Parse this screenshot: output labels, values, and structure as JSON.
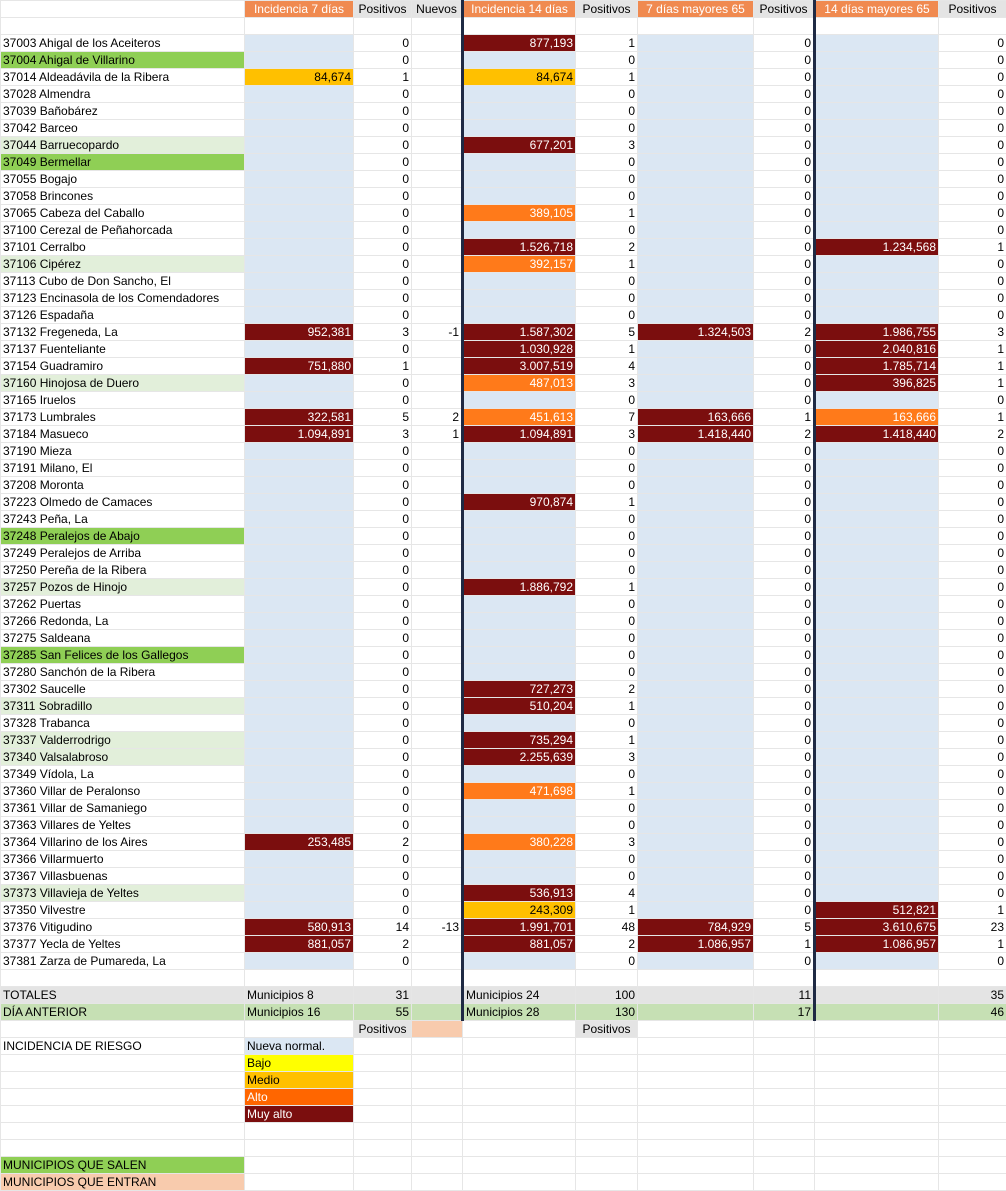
{
  "header": {
    "blank": "",
    "inc7": "Incidencia 7 días",
    "pos1": "Positivos",
    "nuevos": "Nuevos",
    "inc14": "Incidencia 14 días",
    "pos2": "Positivos",
    "may7": "7 días mayores 65",
    "pos3": "Positivos",
    "may14": "14 días mayores 65",
    "pos4": "Positivos"
  },
  "rows": [
    {
      "name": "37003 Ahigal de los Aceiteros",
      "hl": "",
      "i7": "",
      "p7": "0",
      "nu": "",
      "i14": "877,193",
      "i14c": "maroon",
      "p14": "1",
      "m7": "",
      "p65a": "0",
      "m14": "",
      "p65b": "0"
    },
    {
      "name": "37004 Ahigal de Villarino",
      "hl": "outgreen",
      "i7": "",
      "p7": "0",
      "nu": "",
      "i14": "",
      "i14c": "",
      "p14": "0",
      "m7": "",
      "p65a": "0",
      "m14": "",
      "p65b": "0"
    },
    {
      "name": "37014 Aldeadávila de la Ribera",
      "hl": "",
      "i7": "84,674",
      "i7c": "yellow",
      "p7": "1",
      "nu": "",
      "i14": "84,674",
      "i14c": "yellow",
      "p14": "1",
      "m7": "",
      "p65a": "0",
      "m14": "",
      "p65b": "0"
    },
    {
      "name": "37028 Almendra",
      "hl": "",
      "i7": "",
      "p7": "0",
      "nu": "",
      "i14": "",
      "i14c": "",
      "p14": "0",
      "m7": "",
      "p65a": "0",
      "m14": "",
      "p65b": "0"
    },
    {
      "name": "37039 Bañobárez",
      "hl": "",
      "i7": "",
      "p7": "0",
      "nu": "",
      "i14": "",
      "i14c": "",
      "p14": "0",
      "m7": "",
      "p65a": "0",
      "m14": "",
      "p65b": "0"
    },
    {
      "name": "37042 Barceo",
      "hl": "",
      "i7": "",
      "p7": "0",
      "nu": "",
      "i14": "",
      "i14c": "",
      "p14": "0",
      "m7": "",
      "p65a": "0",
      "m14": "",
      "p65b": "0"
    },
    {
      "name": "37044 Barruecopardo",
      "hl": "palegreen",
      "i7": "",
      "p7": "0",
      "nu": "",
      "i14": "677,201",
      "i14c": "maroon",
      "p14": "3",
      "m7": "",
      "p65a": "0",
      "m14": "",
      "p65b": "0"
    },
    {
      "name": "37049 Bermellar",
      "hl": "outgreen",
      "i7": "",
      "p7": "0",
      "nu": "",
      "i14": "",
      "i14c": "",
      "p14": "0",
      "m7": "",
      "p65a": "0",
      "m14": "",
      "p65b": "0"
    },
    {
      "name": "37055 Bogajo",
      "hl": "",
      "i7": "",
      "p7": "0",
      "nu": "",
      "i14": "",
      "i14c": "",
      "p14": "0",
      "m7": "",
      "p65a": "0",
      "m14": "",
      "p65b": "0"
    },
    {
      "name": "37058 Brincones",
      "hl": "",
      "i7": "",
      "p7": "0",
      "nu": "",
      "i14": "",
      "i14c": "",
      "p14": "0",
      "m7": "",
      "p65a": "0",
      "m14": "",
      "p65b": "0"
    },
    {
      "name": "37065 Cabeza del Caballo",
      "hl": "",
      "i7": "",
      "p7": "0",
      "nu": "",
      "i14": "389,105",
      "i14c": "orange",
      "p14": "1",
      "m7": "",
      "p65a": "0",
      "m14": "",
      "p65b": "0"
    },
    {
      "name": "37100 Cerezal de Peñahorcada",
      "hl": "",
      "i7": "",
      "p7": "0",
      "nu": "",
      "i14": "",
      "i14c": "",
      "p14": "0",
      "m7": "",
      "p65a": "0",
      "m14": "",
      "p65b": "0"
    },
    {
      "name": "37101 Cerralbo",
      "hl": "",
      "i7": "",
      "p7": "0",
      "nu": "",
      "i14": "1.526,718",
      "i14c": "maroon",
      "p14": "2",
      "m7": "",
      "p65a": "0",
      "m14": "1.234,568",
      "m14c": "maroon",
      "p65b": "1"
    },
    {
      "name": "37106 Cipérez",
      "hl": "palegreen",
      "i7": "",
      "p7": "0",
      "nu": "",
      "i14": "392,157",
      "i14c": "orange",
      "p14": "1",
      "m7": "",
      "p65a": "0",
      "m14": "",
      "p65b": "0"
    },
    {
      "name": "37113 Cubo de Don Sancho, El",
      "hl": "",
      "i7": "",
      "p7": "0",
      "nu": "",
      "i14": "",
      "i14c": "",
      "p14": "0",
      "m7": "",
      "p65a": "0",
      "m14": "",
      "p65b": "0"
    },
    {
      "name": "37123 Encinasola de los Comendadores",
      "hl": "",
      "i7": "",
      "p7": "0",
      "nu": "",
      "i14": "",
      "i14c": "",
      "p14": "0",
      "m7": "",
      "p65a": "0",
      "m14": "",
      "p65b": "0"
    },
    {
      "name": "37126 Espadaña",
      "hl": "",
      "i7": "",
      "p7": "0",
      "nu": "",
      "i14": "",
      "i14c": "",
      "p14": "0",
      "m7": "",
      "p65a": "0",
      "m14": "",
      "p65b": "0"
    },
    {
      "name": "37132 Fregeneda, La",
      "hl": "",
      "i7": "952,381",
      "i7c": "maroon",
      "p7": "3",
      "nu": "-1",
      "i14": "1.587,302",
      "i14c": "maroon",
      "p14": "5",
      "m7": "1.324,503",
      "m7c": "maroon",
      "p65a": "2",
      "m14": "1.986,755",
      "m14c": "maroon",
      "p65b": "3"
    },
    {
      "name": "37137 Fuenteliante",
      "hl": "",
      "i7": "",
      "p7": "0",
      "nu": "",
      "i14": "1.030,928",
      "i14c": "maroon",
      "p14": "1",
      "m7": "",
      "p65a": "0",
      "m14": "2.040,816",
      "m14c": "maroon",
      "p65b": "1"
    },
    {
      "name": "37154 Guadramiro",
      "hl": "",
      "i7": "751,880",
      "i7c": "maroon",
      "p7": "1",
      "nu": "",
      "i14": "3.007,519",
      "i14c": "maroon",
      "p14": "4",
      "m7": "",
      "p65a": "0",
      "m14": "1.785,714",
      "m14c": "maroon",
      "p65b": "1"
    },
    {
      "name": "37160 Hinojosa de Duero",
      "hl": "palegreen",
      "i7": "",
      "p7": "0",
      "nu": "",
      "i14": "487,013",
      "i14c": "orange",
      "p14": "3",
      "m7": "",
      "p65a": "0",
      "m14": "396,825",
      "m14c": "maroon",
      "p65b": "1"
    },
    {
      "name": "37165 Iruelos",
      "hl": "",
      "i7": "",
      "p7": "0",
      "nu": "",
      "i14": "",
      "i14c": "",
      "p14": "0",
      "m7": "",
      "p65a": "0",
      "m14": "",
      "p65b": "0"
    },
    {
      "name": "37173 Lumbrales",
      "hl": "",
      "i7": "322,581",
      "i7c": "maroon",
      "p7": "5",
      "nu": "2",
      "i14": "451,613",
      "i14c": "orange",
      "p14": "7",
      "m7": "163,666",
      "m7c": "maroon",
      "p65a": "1",
      "m14": "163,666",
      "m14c": "orange",
      "p65b": "1"
    },
    {
      "name": "37184 Masueco",
      "hl": "",
      "i7": "1.094,891",
      "i7c": "maroon",
      "p7": "3",
      "nu": "1",
      "i14": "1.094,891",
      "i14c": "maroon",
      "p14": "3",
      "m7": "1.418,440",
      "m7c": "maroon",
      "p65a": "2",
      "m14": "1.418,440",
      "m14c": "maroon",
      "p65b": "2"
    },
    {
      "name": "37190 Mieza",
      "hl": "",
      "i7": "",
      "p7": "0",
      "nu": "",
      "i14": "",
      "i14c": "",
      "p14": "0",
      "m7": "",
      "p65a": "0",
      "m14": "",
      "p65b": "0"
    },
    {
      "name": "37191 Milano, El",
      "hl": "",
      "i7": "",
      "p7": "0",
      "nu": "",
      "i14": "",
      "i14c": "",
      "p14": "0",
      "m7": "",
      "p65a": "0",
      "m14": "",
      "p65b": "0"
    },
    {
      "name": "37208 Moronta",
      "hl": "",
      "i7": "",
      "p7": "0",
      "nu": "",
      "i14": "",
      "i14c": "",
      "p14": "0",
      "m7": "",
      "p65a": "0",
      "m14": "",
      "p65b": "0"
    },
    {
      "name": "37223 Olmedo de Camaces",
      "hl": "",
      "i7": "",
      "p7": "0",
      "nu": "",
      "i14": "970,874",
      "i14c": "maroon",
      "p14": "1",
      "m7": "",
      "p65a": "0",
      "m14": "",
      "p65b": "0"
    },
    {
      "name": "37243 Peña, La",
      "hl": "",
      "i7": "",
      "p7": "0",
      "nu": "",
      "i14": "",
      "i14c": "",
      "p14": "0",
      "m7": "",
      "p65a": "0",
      "m14": "",
      "p65b": "0"
    },
    {
      "name": "37248 Peralejos de Abajo",
      "hl": "outgreen",
      "i7": "",
      "p7": "0",
      "nu": "",
      "i14": "",
      "i14c": "",
      "p14": "0",
      "m7": "",
      "p65a": "0",
      "m14": "",
      "p65b": "0"
    },
    {
      "name": "37249 Peralejos de Arriba",
      "hl": "",
      "i7": "",
      "p7": "0",
      "nu": "",
      "i14": "",
      "i14c": "",
      "p14": "0",
      "m7": "",
      "p65a": "0",
      "m14": "",
      "p65b": "0"
    },
    {
      "name": "37250 Pereña de la Ribera",
      "hl": "",
      "i7": "",
      "p7": "0",
      "nu": "",
      "i14": "",
      "i14c": "",
      "p14": "0",
      "m7": "",
      "p65a": "0",
      "m14": "",
      "p65b": "0"
    },
    {
      "name": "37257 Pozos de Hinojo",
      "hl": "palegreen",
      "i7": "",
      "p7": "0",
      "nu": "",
      "i14": "1.886,792",
      "i14c": "maroon",
      "p14": "1",
      "m7": "",
      "p65a": "0",
      "m14": "",
      "p65b": "0"
    },
    {
      "name": "37262 Puertas",
      "hl": "",
      "i7": "",
      "p7": "0",
      "nu": "",
      "i14": "",
      "i14c": "",
      "p14": "0",
      "m7": "",
      "p65a": "0",
      "m14": "",
      "p65b": "0"
    },
    {
      "name": "37266 Redonda, La",
      "hl": "",
      "i7": "",
      "p7": "0",
      "nu": "",
      "i14": "",
      "i14c": "",
      "p14": "0",
      "m7": "",
      "p65a": "0",
      "m14": "",
      "p65b": "0"
    },
    {
      "name": "37275 Saldeana",
      "hl": "",
      "i7": "",
      "p7": "0",
      "nu": "",
      "i14": "",
      "i14c": "",
      "p14": "0",
      "m7": "",
      "p65a": "0",
      "m14": "",
      "p65b": "0"
    },
    {
      "name": "37285 San Felices de los Gallegos",
      "hl": "outgreen",
      "i7": "",
      "p7": "0",
      "nu": "",
      "i14": "",
      "i14c": "",
      "p14": "0",
      "m7": "",
      "p65a": "0",
      "m14": "",
      "p65b": "0"
    },
    {
      "name": "37280 Sanchón de la Ribera",
      "hl": "",
      "i7": "",
      "p7": "0",
      "nu": "",
      "i14": "",
      "i14c": "",
      "p14": "0",
      "m7": "",
      "p65a": "0",
      "m14": "",
      "p65b": "0"
    },
    {
      "name": "37302 Saucelle",
      "hl": "",
      "i7": "",
      "p7": "0",
      "nu": "",
      "i14": "727,273",
      "i14c": "maroon",
      "p14": "2",
      "m7": "",
      "p65a": "0",
      "m14": "",
      "p65b": "0"
    },
    {
      "name": "37311 Sobradillo",
      "hl": "palegreen",
      "i7": "",
      "p7": "0",
      "nu": "",
      "i14": "510,204",
      "i14c": "maroon",
      "p14": "1",
      "m7": "",
      "p65a": "0",
      "m14": "",
      "p65b": "0"
    },
    {
      "name": "37328 Trabanca",
      "hl": "",
      "i7": "",
      "p7": "0",
      "nu": "",
      "i14": "",
      "i14c": "",
      "p14": "0",
      "m7": "",
      "p65a": "0",
      "m14": "",
      "p65b": "0"
    },
    {
      "name": "37337 Valderrodrigo",
      "hl": "palegreen",
      "i7": "",
      "p7": "0",
      "nu": "",
      "i14": "735,294",
      "i14c": "maroon",
      "p14": "1",
      "m7": "",
      "p65a": "0",
      "m14": "",
      "p65b": "0"
    },
    {
      "name": "37340 Valsalabroso",
      "hl": "palegreen",
      "i7": "",
      "p7": "0",
      "nu": "",
      "i14": "2.255,639",
      "i14c": "maroon",
      "p14": "3",
      "m7": "",
      "p65a": "0",
      "m14": "",
      "p65b": "0"
    },
    {
      "name": "37349 Vídola, La",
      "hl": "",
      "i7": "",
      "p7": "0",
      "nu": "",
      "i14": "",
      "i14c": "",
      "p14": "0",
      "m7": "",
      "p65a": "0",
      "m14": "",
      "p65b": "0"
    },
    {
      "name": "37360 Villar de Peralonso",
      "hl": "",
      "i7": "",
      "p7": "0",
      "nu": "",
      "i14": "471,698",
      "i14c": "orange",
      "p14": "1",
      "m7": "",
      "p65a": "0",
      "m14": "",
      "p65b": "0"
    },
    {
      "name": "37361 Villar de Samaniego",
      "hl": "",
      "i7": "",
      "p7": "0",
      "nu": "",
      "i14": "",
      "i14c": "",
      "p14": "0",
      "m7": "",
      "p65a": "0",
      "m14": "",
      "p65b": "0"
    },
    {
      "name": "37363 Villares de Yeltes",
      "hl": "",
      "i7": "",
      "p7": "0",
      "nu": "",
      "i14": "",
      "i14c": "",
      "p14": "0",
      "m7": "",
      "p65a": "0",
      "m14": "",
      "p65b": "0"
    },
    {
      "name": "37364 Villarino de los Aires",
      "hl": "",
      "i7": "253,485",
      "i7c": "maroon",
      "p7": "2",
      "nu": "",
      "i14": "380,228",
      "i14c": "orange",
      "p14": "3",
      "m7": "",
      "p65a": "0",
      "m14": "",
      "p65b": "0"
    },
    {
      "name": "37366 Villarmuerto",
      "hl": "",
      "i7": "",
      "p7": "0",
      "nu": "",
      "i14": "",
      "i14c": "",
      "p14": "0",
      "m7": "",
      "p65a": "0",
      "m14": "",
      "p65b": "0"
    },
    {
      "name": "37367 Villasbuenas",
      "hl": "",
      "i7": "",
      "p7": "0",
      "nu": "",
      "i14": "",
      "i14c": "",
      "p14": "0",
      "m7": "",
      "p65a": "0",
      "m14": "",
      "p65b": "0"
    },
    {
      "name": "37373 Villavieja de Yeltes",
      "hl": "palegreen",
      "i7": "",
      "p7": "0",
      "nu": "",
      "i14": "536,913",
      "i14c": "maroon",
      "p14": "4",
      "m7": "",
      "p65a": "0",
      "m14": "",
      "p65b": "0"
    },
    {
      "name": "37350 Vilvestre",
      "hl": "",
      "i7": "",
      "p7": "0",
      "nu": "",
      "i14": "243,309",
      "i14c": "yellow",
      "p14": "1",
      "m7": "",
      "p65a": "0",
      "m14": "512,821",
      "m14c": "maroon",
      "p65b": "1"
    },
    {
      "name": "37376 Vitigudino",
      "hl": "",
      "i7": "580,913",
      "i7c": "maroon",
      "p7": "14",
      "nu": "-13",
      "i14": "1.991,701",
      "i14c": "maroon",
      "p14": "48",
      "m7": "784,929",
      "m7c": "maroon",
      "p65a": "5",
      "m14": "3.610,675",
      "m14c": "maroon",
      "p65b": "23"
    },
    {
      "name": "37377 Yecla de Yeltes",
      "hl": "",
      "i7": "881,057",
      "i7c": "maroon",
      "p7": "2",
      "nu": "",
      "i14": "881,057",
      "i14c": "maroon",
      "p14": "2",
      "m7": "1.086,957",
      "m7c": "maroon",
      "p65a": "1",
      "m14": "1.086,957",
      "m14c": "maroon",
      "p65b": "1"
    },
    {
      "name": "37381 Zarza de Pumareda, La",
      "hl": "",
      "i7": "",
      "p7": "0",
      "nu": "",
      "i14": "",
      "i14c": "",
      "p14": "0",
      "m7": "",
      "p65a": "0",
      "m14": "",
      "p65b": "0"
    }
  ],
  "totals": {
    "label": "TOTALES",
    "mun7": "Municipios 8",
    "pos7": "31",
    "mun14": "Municipios 24",
    "pos14": "100",
    "pos65a": "11",
    "pos65b": "35"
  },
  "prev": {
    "label": "DÍA ANTERIOR",
    "mun7": "Municipios 16",
    "pos7": "55",
    "mun14": "Municipios 28",
    "pos14": "130",
    "pos65a": "17",
    "pos65b": "46"
  },
  "subheader": {
    "pos1": "Positivos",
    "pos2": "Positivos"
  },
  "legend": {
    "title": "INCIDENCIA DE RIESGO",
    "items": [
      "Nueva normal.",
      "Bajo",
      "Medio",
      "Alto",
      "Muy alto"
    ]
  },
  "footer": {
    "salen": "MUNICIPIOS QUE SALEN",
    "entran": "MUNICIPIOS QUE ENTRAN"
  },
  "colors": {
    "header_orange": "#f08a50",
    "light_blue": "#dbe7f3",
    "yellow": "#ffc000",
    "orange": "#ff7a1a",
    "maroon": "#7b0e0e",
    "out_green": "#8fcf55",
    "pale_green": "#e2efda",
    "separator": "#1f2a44"
  }
}
